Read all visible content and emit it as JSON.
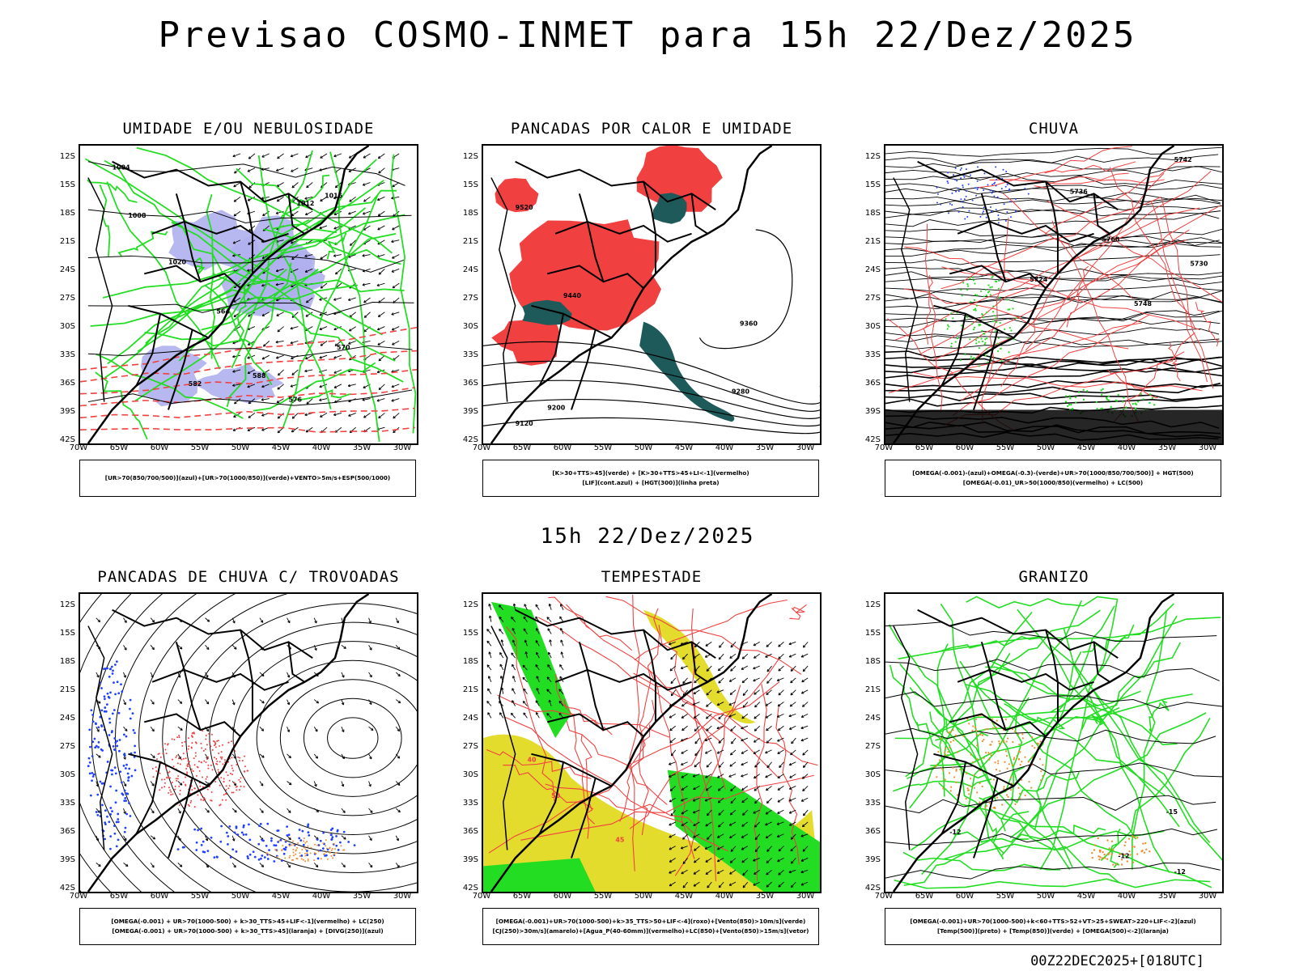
{
  "header": {
    "title": "Previsao COSMO-INMET  para 15h 22/Dez/2025"
  },
  "mid_title": "15h 22/Dez/2025",
  "footer_timestamp": "00Z22DEC2025+[018UTC]",
  "axes": {
    "lat_labels": [
      "12S",
      "15S",
      "18S",
      "21S",
      "24S",
      "27S",
      "30S",
      "33S",
      "36S",
      "39S",
      "42S"
    ],
    "lon_labels": [
      "70W",
      "65W",
      "60W",
      "55W",
      "50W",
      "45W",
      "40W",
      "35W",
      "30W"
    ]
  },
  "panels": [
    {
      "id": "umidade",
      "title": "UMIDADE E/OU NEBULOSIDADE",
      "legend": [
        "[UR>70(850/700/500)](azul)+[UR>70(1000/850)](verde)+VENTO>5m/s+ESP(500/1000)"
      ],
      "contour_labels": [
        "1004",
        "1008",
        "1012",
        "1016",
        "1020",
        "564",
        "570",
        "576",
        "582",
        "588"
      ]
    },
    {
      "id": "pancadas-calor",
      "title": "PANCADAS POR CALOR E UMIDADE",
      "legend": [
        "[K>30+TTS>45](verde) + [K>30+TTS>45+LI<-1](vermelho)",
        "[LIF](cont.azul) + [HGT(300)](linha preta)"
      ],
      "contour_labels": [
        "9520",
        "9440",
        "9360",
        "9280",
        "9200",
        "9120"
      ]
    },
    {
      "id": "chuva",
      "title": "CHUVA",
      "legend": [
        "[OMEGA(-0.001)-(azul)+OMEGA(-0.3)-(verde)+UR>70(1000/850/700/500)] + HGT(500)",
        "[OMEGA(-0.01)_UR>50(1000/850)(vermelho) + LC(500)"
      ],
      "contour_labels": [
        "5742",
        "5736",
        "5730",
        "5748",
        "5724",
        "5760"
      ]
    },
    {
      "id": "trovoadas",
      "title": "PANCADAS DE CHUVA C/ TROVOADAS",
      "legend": [
        "[OMEGA(-0.001) + UR>70(1000-500) + k>30_TTS>45+LIF<-1](vermelho) + LC(250)",
        "[OMEGA(-0.001) + UR>70(1000-500) + k>30_TTS>45](laranja) + [DIVG(250)](azul)"
      ],
      "contour_labels": []
    },
    {
      "id": "tempestade",
      "title": "TEMPESTADE",
      "legend": [
        "[OMEGA(-0.001)+UR>70(1000-500)+k>35_TTS>50+LIF<-4](roxo)+[Vento(850)>10m/s](verde)",
        "[CJ(250)>30m/s](amarelo)+[Agua_P(40-60mm)](vermelho)+LC(850)+[Vento(850)>15m/s](vetor)"
      ],
      "contour_labels": [
        "40",
        "45",
        "50"
      ]
    },
    {
      "id": "granizo",
      "title": "GRANIZO",
      "legend": [
        "[OMEGA(-0.001)+UR>70(1000-500)+k<60+TTS>52+VT>25+SWEAT>220+LIF<-2](azul)",
        "[Temp(500)](preto) + [Temp(850)](verde) + [OMEGA(500)<-2](laranja)"
      ],
      "contour_labels": [
        "-12",
        "-15",
        "-12",
        "-12"
      ]
    }
  ],
  "colors": {
    "red": "#f04040",
    "green": "#22dd22",
    "lavender": "#b0b0ee",
    "teal": "#1f5a5a",
    "yellow": "#e4dc2c",
    "orange": "#f08c30",
    "blue": "#2040ff"
  }
}
